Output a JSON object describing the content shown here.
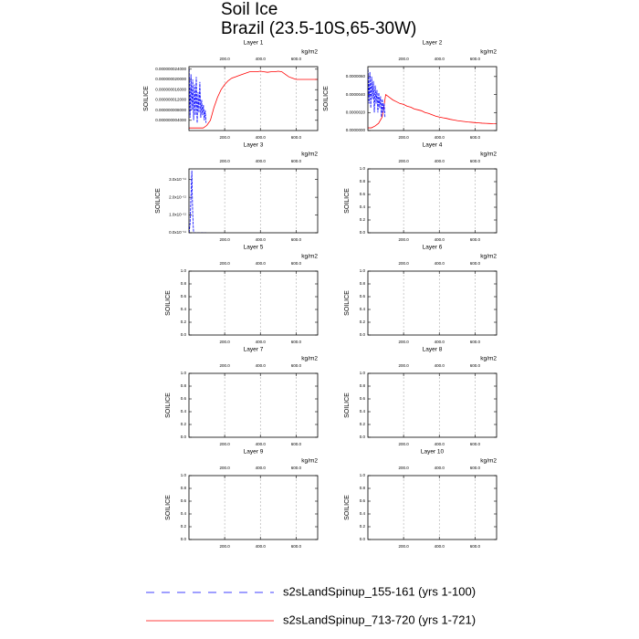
{
  "title": "Soil Ice",
  "subtitle": "Brazil (23.5-10S,65-30W)",
  "chart_data": [
    {
      "type": "line",
      "title": "Layer 1",
      "xlabel": "kg/m2",
      "ylabel": "SOILICE",
      "xlim": [
        0,
        721
      ],
      "ylim": [
        0,
        2.5e-08
      ],
      "xticks": [
        {
          "value": 200,
          "label": "200.0"
        },
        {
          "value": 400,
          "label": "400.0"
        },
        {
          "value": 600,
          "label": "600.0"
        }
      ],
      "xtick_color": "#ff0000",
      "x2ticks": [
        {
          "value": 200,
          "label": "200.0"
        },
        {
          "value": 400,
          "label": "400.0"
        },
        {
          "value": 600,
          "label": "600.0"
        }
      ],
      "x2tick_color": "#0000ff",
      "yticks": [
        {
          "value": 4e-09,
          "label": "0.000000004000"
        },
        {
          "value": 8e-09,
          "label": "0.000000008000"
        },
        {
          "value": 1.2e-08,
          "label": "0.000000012000"
        },
        {
          "value": 1.6e-08,
          "label": "0.000000016000"
        },
        {
          "value": 2e-08,
          "label": "0.000000020000"
        },
        {
          "value": 2.4e-08,
          "label": "0.000000024000"
        }
      ],
      "grid": true,
      "series": [
        {
          "name": "s2sLandSpinup_155-161 (yrs 1-100)",
          "color": "#0000ff",
          "dash": true,
          "x": [
            1,
            6,
            11,
            16,
            21,
            26,
            31,
            36,
            41,
            46,
            51,
            56,
            61,
            66,
            71,
            76,
            81,
            86,
            91,
            96
          ],
          "values": [
            2.4e-08,
            5e-09,
            2.2e-08,
            8e-09,
            2e-08,
            4e-09,
            1.8e-08,
            6e-09,
            2.1e-08,
            3e-09,
            1.5e-08,
            7e-09,
            1.9e-08,
            5e-09,
            1.2e-08,
            6e-09,
            1e-08,
            4e-09,
            8e-09,
            3e-09
          ]
        },
        {
          "name": "s2sLandSpinup_713-720 (yrs 1-721)",
          "color": "#ff0000",
          "dash": false,
          "x": [
            0,
            20,
            40,
            60,
            80,
            100,
            120,
            140,
            160,
            180,
            200,
            220,
            240,
            260,
            280,
            300,
            320,
            340,
            360,
            380,
            400,
            420,
            440,
            460,
            480,
            500,
            520,
            540,
            560,
            580,
            600,
            620,
            640,
            660,
            680,
            700,
            720
          ],
          "values": [
            1e-09,
            1e-09,
            1e-09,
            1e-09,
            1e-09,
            2e-09,
            4e-09,
            9e-09,
            1.3e-08,
            1.6e-08,
            1.8e-08,
            1.95e-08,
            2.05e-08,
            2.1e-08,
            2.15e-08,
            2.2e-08,
            2.25e-08,
            2.3e-08,
            2.3e-08,
            2.3e-08,
            2.32e-08,
            2.3e-08,
            2.28e-08,
            2.3e-08,
            2.3e-08,
            2.32e-08,
            2.3e-08,
            2.2e-08,
            2.1e-08,
            2.05e-08,
            2e-08,
            2e-08,
            2e-08,
            2e-08,
            2e-08,
            2e-08,
            2e-08
          ]
        }
      ]
    },
    {
      "type": "line",
      "title": "Layer 2",
      "xlabel": "kg/m2",
      "ylabel": "SOILICE",
      "xlim": [
        0,
        721
      ],
      "ylim": [
        0,
        7.1e-06
      ],
      "xticks": [
        {
          "value": 200,
          "label": "200.0"
        },
        {
          "value": 400,
          "label": "400.0"
        },
        {
          "value": 600,
          "label": "600.0"
        }
      ],
      "xtick_color": "#ff0000",
      "x2ticks": [
        {
          "value": 200,
          "label": "200.0"
        },
        {
          "value": 400,
          "label": "400.0"
        },
        {
          "value": 600,
          "label": "600.0"
        }
      ],
      "x2tick_color": "#0000ff",
      "yticks": [
        {
          "value": 0,
          "label": "0.0000000"
        },
        {
          "value": 2e-06,
          "label": "0.0000020"
        },
        {
          "value": 4e-06,
          "label": "0.0000040"
        },
        {
          "value": 6e-06,
          "label": "0.0000060"
        }
      ],
      "grid": true,
      "series": [
        {
          "color": "#0000ff",
          "dash": true,
          "x": [
            1,
            6,
            11,
            16,
            21,
            26,
            31,
            36,
            41,
            46,
            51,
            56,
            61,
            66,
            71,
            76,
            81,
            86,
            91,
            96
          ],
          "values": [
            6.8e-06,
            3e-06,
            6.5e-06,
            2.5e-06,
            6e-06,
            3.5e-06,
            5.5e-06,
            2e-06,
            5e-06,
            3e-06,
            4.5e-06,
            2e-06,
            4.2e-06,
            2.5e-06,
            3.8e-06,
            1.5e-06,
            3.5e-06,
            2e-06,
            3e-06,
            1.5e-06
          ]
        },
        {
          "color": "#ff0000",
          "dash": false,
          "x": [
            0,
            20,
            40,
            60,
            80,
            100,
            120,
            140,
            160,
            180,
            200,
            220,
            240,
            260,
            280,
            300,
            320,
            340,
            360,
            380,
            400,
            420,
            440,
            460,
            480,
            500,
            520,
            540,
            560,
            580,
            600,
            620,
            640,
            660,
            680,
            700,
            720
          ],
          "values": [
            3e-07,
            3e-07,
            5e-07,
            8e-07,
            1.5e-06,
            4e-06,
            3.7e-06,
            3.4e-06,
            3.2e-06,
            3e-06,
            2.9e-06,
            2.7e-06,
            2.6e-06,
            2.4e-06,
            2.3e-06,
            2.2e-06,
            2e-06,
            1.9e-06,
            1.75e-06,
            1.6e-06,
            1.5e-06,
            1.42e-06,
            1.35e-06,
            1.25e-06,
            1.18e-06,
            1.1e-06,
            1.05e-06,
            1e-06,
            9.5e-07,
            9.2e-07,
            8.8e-07,
            8.5e-07,
            8.2e-07,
            8e-07,
            7.8e-07,
            7.6e-07,
            7.5e-07
          ]
        }
      ]
    },
    {
      "type": "line",
      "title": "Layer 3",
      "xlabel": "kg/m2",
      "ylabel": "SOILICE",
      "xlim": [
        0,
        721
      ],
      "ylim": [
        0,
        3.6e-11
      ],
      "xticks": [
        {
          "value": 200,
          "label": "200.0"
        },
        {
          "value": 400,
          "label": "400.0"
        },
        {
          "value": 600,
          "label": "600.0"
        }
      ],
      "xtick_color": "#ff0000",
      "x2ticks": [
        {
          "value": 200,
          "label": "200.0"
        },
        {
          "value": 400,
          "label": "400.0"
        },
        {
          "value": 600,
          "label": "600.0"
        }
      ],
      "x2tick_color": "#0000ff",
      "yticks": [
        {
          "value": 0,
          "label": "0.0x10⁻¹¹"
        },
        {
          "value": 1e-11,
          "label": "1.0x10⁻¹¹"
        },
        {
          "value": 2e-11,
          "label": "2.0x10⁻¹¹"
        },
        {
          "value": 3e-11,
          "label": "3.0x10⁻¹¹"
        }
      ],
      "grid": true,
      "series": [
        {
          "color": "#0000ff",
          "dash": true,
          "x": [
            1,
            6,
            11,
            16,
            21,
            26,
            31,
            36,
            41,
            46,
            51,
            56,
            61,
            66,
            71,
            76,
            81,
            86,
            91,
            96
          ],
          "values": [
            0,
            5e-12,
            2e-11,
            3.5e-11,
            1e-11,
            0,
            0,
            0,
            0,
            0,
            0,
            0,
            0,
            0,
            0,
            0,
            0,
            0,
            0,
            0
          ]
        }
      ]
    },
    {
      "type": "line",
      "title": "Layer 4",
      "xlabel": "kg/m2",
      "ylabel": "SOILICE",
      "xlim": [
        0,
        721
      ],
      "ylim": [
        0,
        1
      ],
      "xticks": [
        {
          "value": 200,
          "label": "200.0"
        },
        {
          "value": 400,
          "label": "400.0"
        },
        {
          "value": 600,
          "label": "600.0"
        }
      ],
      "xtick_color": "#ff0000",
      "x2ticks": [
        {
          "value": 200,
          "label": "200.0"
        },
        {
          "value": 400,
          "label": "400.0"
        },
        {
          "value": 600,
          "label": "600.0"
        }
      ],
      "x2tick_color": "#0000ff",
      "yticks": [
        {
          "value": 0,
          "label": "0.0"
        },
        0.2,
        0.4,
        0.6,
        0.8,
        {
          "value": 1,
          "label": "1.0"
        }
      ],
      "grid": true,
      "series": []
    },
    {
      "type": "line",
      "title": "Layer 5",
      "xlabel": "kg/m2",
      "ylabel": "SOILICE",
      "xlim": [
        0,
        721
      ],
      "ylim": [
        0,
        1
      ],
      "xticks": [
        {
          "value": 200,
          "label": "200.0"
        },
        {
          "value": 400,
          "label": "400.0"
        },
        {
          "value": 600,
          "label": "600.0"
        }
      ],
      "xtick_color": "#ff0000",
      "x2ticks": [
        {
          "value": 200,
          "label": "200.0"
        },
        {
          "value": 400,
          "label": "400.0"
        },
        {
          "value": 600,
          "label": "600.0"
        }
      ],
      "x2tick_color": "#0000ff",
      "yticks": [
        {
          "value": 0,
          "label": "0.0"
        },
        0.2,
        0.4,
        0.6,
        0.8,
        {
          "value": 1,
          "label": "1.0"
        }
      ],
      "grid": true,
      "series": []
    },
    {
      "type": "line",
      "title": "Layer 6",
      "xlabel": "kg/m2",
      "ylabel": "SOILICE",
      "xlim": [
        0,
        721
      ],
      "ylim": [
        0,
        1
      ],
      "xticks": [
        {
          "value": 200,
          "label": "200.0"
        },
        {
          "value": 400,
          "label": "400.0"
        },
        {
          "value": 600,
          "label": "600.0"
        }
      ],
      "xtick_color": "#ff0000",
      "x2ticks": [
        {
          "value": 200,
          "label": "200.0"
        },
        {
          "value": 400,
          "label": "400.0"
        },
        {
          "value": 600,
          "label": "600.0"
        }
      ],
      "x2tick_color": "#0000ff",
      "yticks": [
        {
          "value": 0,
          "label": "0.0"
        },
        0.2,
        0.4,
        0.6,
        0.8,
        {
          "value": 1,
          "label": "1.0"
        }
      ],
      "grid": true,
      "series": []
    },
    {
      "type": "line",
      "title": "Layer 7",
      "xlabel": "kg/m2",
      "ylabel": "SOILICE",
      "xlim": [
        0,
        721
      ],
      "ylim": [
        0,
        1
      ],
      "xticks": [
        {
          "value": 200,
          "label": "200.0"
        },
        {
          "value": 400,
          "label": "400.0"
        },
        {
          "value": 600,
          "label": "600.0"
        }
      ],
      "xtick_color": "#ff0000",
      "x2ticks": [
        {
          "value": 200,
          "label": "200.0"
        },
        {
          "value": 400,
          "label": "400.0"
        },
        {
          "value": 600,
          "label": "600.0"
        }
      ],
      "x2tick_color": "#0000ff",
      "yticks": [
        {
          "value": 0,
          "label": "0.0"
        },
        0.2,
        0.4,
        0.6,
        0.8,
        {
          "value": 1,
          "label": "1.0"
        }
      ],
      "grid": true,
      "series": []
    },
    {
      "type": "line",
      "title": "Layer 8",
      "xlabel": "kg/m2",
      "ylabel": "SOILICE",
      "xlim": [
        0,
        721
      ],
      "ylim": [
        0,
        1
      ],
      "xticks": [
        {
          "value": 200,
          "label": "200.0"
        },
        {
          "value": 400,
          "label": "400.0"
        },
        {
          "value": 600,
          "label": "600.0"
        }
      ],
      "xtick_color": "#ff0000",
      "x2ticks": [
        {
          "value": 200,
          "label": "200.0"
        },
        {
          "value": 400,
          "label": "400.0"
        },
        {
          "value": 600,
          "label": "600.0"
        }
      ],
      "x2tick_color": "#0000ff",
      "yticks": [
        {
          "value": 0,
          "label": "0.0"
        },
        0.2,
        0.4,
        0.6,
        0.8,
        {
          "value": 1,
          "label": "1.0"
        }
      ],
      "grid": true,
      "series": []
    },
    {
      "type": "line",
      "title": "Layer 9",
      "xlabel": "kg/m2",
      "ylabel": "SOILICE",
      "xlim": [
        0,
        721
      ],
      "ylim": [
        0,
        1
      ],
      "xticks": [
        {
          "value": 200,
          "label": "200.0"
        },
        {
          "value": 400,
          "label": "400.0"
        },
        {
          "value": 600,
          "label": "600.0"
        }
      ],
      "xtick_color": "#ff0000",
      "x2ticks": [
        {
          "value": 200,
          "label": "200.0"
        },
        {
          "value": 400,
          "label": "400.0"
        },
        {
          "value": 600,
          "label": "600.0"
        }
      ],
      "x2tick_color": "#0000ff",
      "yticks": [
        {
          "value": 0,
          "label": "0.0"
        },
        0.2,
        0.4,
        0.6,
        0.8,
        {
          "value": 1,
          "label": "1.0"
        }
      ],
      "grid": true,
      "series": []
    },
    {
      "type": "line",
      "title": "Layer 10",
      "xlabel": "kg/m2",
      "ylabel": "SOILICE",
      "xlim": [
        0,
        721
      ],
      "ylim": [
        0,
        1
      ],
      "xticks": [
        {
          "value": 200,
          "label": "200.0"
        },
        {
          "value": 400,
          "label": "400.0"
        },
        {
          "value": 600,
          "label": "600.0"
        }
      ],
      "xtick_color": "#ff0000",
      "x2ticks": [
        {
          "value": 200,
          "label": "200.0"
        },
        {
          "value": 400,
          "label": "400.0"
        },
        {
          "value": 600,
          "label": "600.0"
        }
      ],
      "x2tick_color": "#0000ff",
      "yticks": [
        {
          "value": 0,
          "label": "0.0"
        },
        0.2,
        0.4,
        0.6,
        0.8,
        {
          "value": 1,
          "label": "1.0"
        }
      ],
      "grid": true,
      "series": []
    }
  ]
}
